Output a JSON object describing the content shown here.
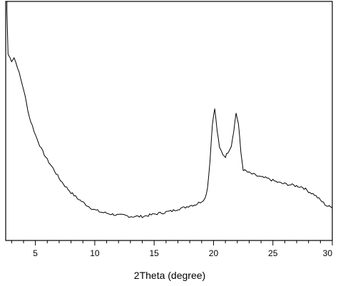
{
  "chart_data": {
    "type": "line",
    "title": "",
    "xlabel": "2Theta (degree)",
    "ylabel": "",
    "xlim": [
      2.5,
      30
    ],
    "ylim": [
      0,
      1
    ],
    "xticks": [
      5,
      10,
      15,
      20,
      25,
      30
    ],
    "xtick_labels": [
      "5",
      "10",
      "15",
      "20",
      "25",
      "30"
    ],
    "yticks_labeled": false,
    "grid": false,
    "legend": "none",
    "line_color": "#000000",
    "series": [
      {
        "x": [
          2.6,
          2.7,
          3.0,
          3.2,
          3.5,
          4.0,
          4.5,
          5.0,
          5.5,
          6.0,
          6.5,
          7.0,
          7.5,
          8.0,
          8.5,
          9.0,
          9.5,
          10.0,
          10.5,
          11.0,
          11.5,
          12.0,
          12.5,
          13.0,
          13.5,
          14.0,
          14.5,
          15.0,
          15.5,
          16.0,
          16.5,
          17.0,
          17.5,
          18.0,
          18.5,
          19.0,
          19.3,
          19.5,
          19.7,
          19.9,
          20.1,
          20.3,
          20.5,
          20.8,
          21.0,
          21.2,
          21.5,
          21.7,
          21.9,
          22.1,
          22.3,
          22.5,
          22.8,
          23.0,
          23.5,
          24.0,
          24.5,
          25.0,
          25.5,
          26.0,
          26.5,
          27.0,
          27.5,
          28.0,
          28.5,
          29.0,
          29.5,
          30.0
        ],
        "y": [
          0.99,
          0.79,
          0.76,
          0.775,
          0.73,
          0.63,
          0.5,
          0.42,
          0.355,
          0.305,
          0.265,
          0.22,
          0.185,
          0.155,
          0.13,
          0.11,
          0.09,
          0.075,
          0.065,
          0.06,
          0.055,
          0.05,
          0.05,
          0.045,
          0.045,
          0.045,
          0.05,
          0.055,
          0.06,
          0.065,
          0.07,
          0.08,
          0.085,
          0.095,
          0.1,
          0.115,
          0.13,
          0.18,
          0.3,
          0.47,
          0.54,
          0.44,
          0.36,
          0.33,
          0.32,
          0.34,
          0.37,
          0.44,
          0.52,
          0.47,
          0.34,
          0.26,
          0.25,
          0.245,
          0.235,
          0.225,
          0.22,
          0.21,
          0.2,
          0.195,
          0.19,
          0.185,
          0.18,
          0.16,
          0.145,
          0.12,
          0.095,
          0.085
        ]
      }
    ]
  }
}
